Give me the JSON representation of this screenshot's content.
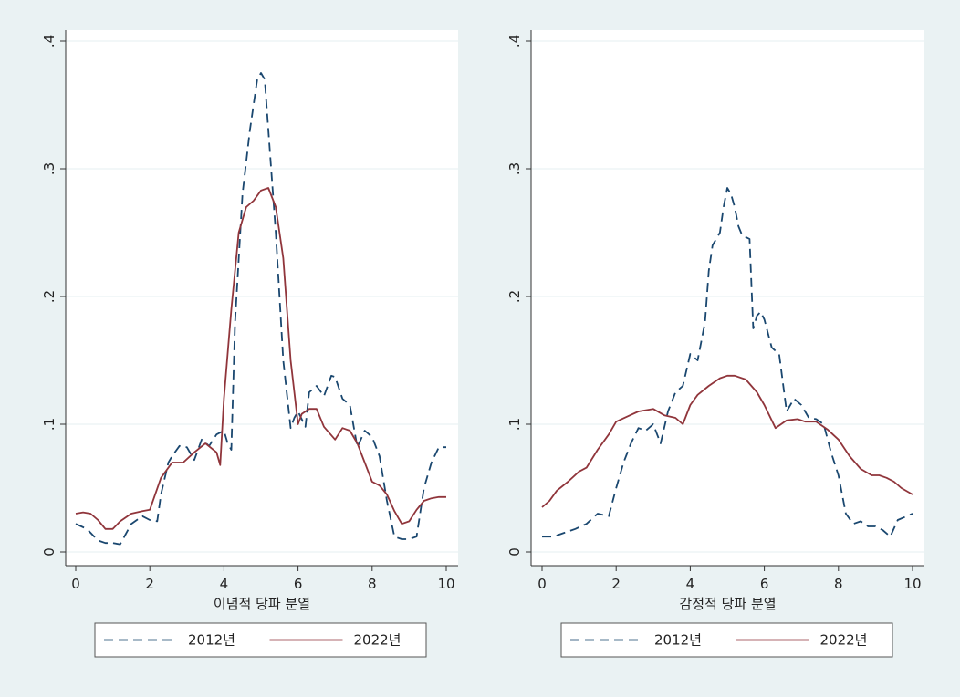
{
  "chart_data": [
    {
      "type": "line",
      "xlabel": "이념적 당파 분열",
      "ylabel": "",
      "xlim": [
        0,
        10
      ],
      "ylim": [
        0,
        0.4
      ],
      "xticks": [
        "0",
        "2",
        "4",
        "6",
        "8",
        "10"
      ],
      "yticks": [
        ".4",
        ".3",
        ".2",
        ".1",
        "0"
      ],
      "grid": true,
      "legend_position": "bottom",
      "series": [
        {
          "name": "2012년",
          "style": "dashed",
          "color": "#1a476f",
          "x": [
            0,
            0.3,
            0.6,
            0.8,
            1.0,
            1.2,
            1.5,
            1.8,
            2.0,
            2.2,
            2.3,
            2.5,
            2.6,
            2.8,
            3.0,
            3.2,
            3.4,
            3.6,
            3.8,
            4.0,
            4.1,
            4.2,
            4.3,
            4.5,
            4.7,
            4.9,
            5.0,
            5.1,
            5.2,
            5.4,
            5.6,
            5.8,
            5.9,
            6.0,
            6.2,
            6.3,
            6.5,
            6.7,
            6.9,
            7.0,
            7.2,
            7.4,
            7.6,
            7.8,
            8.0,
            8.2,
            8.4,
            8.6,
            8.8,
            9.0,
            9.2,
            9.4,
            9.6,
            9.8,
            10.0
          ],
          "y": [
            0.022,
            0.018,
            0.009,
            0.007,
            0.007,
            0.006,
            0.022,
            0.028,
            0.025,
            0.024,
            0.045,
            0.07,
            0.075,
            0.083,
            0.082,
            0.072,
            0.088,
            0.083,
            0.092,
            0.095,
            0.085,
            0.08,
            0.18,
            0.28,
            0.33,
            0.37,
            0.375,
            0.37,
            0.33,
            0.25,
            0.15,
            0.097,
            0.105,
            0.11,
            0.098,
            0.125,
            0.13,
            0.122,
            0.138,
            0.137,
            0.12,
            0.115,
            0.082,
            0.095,
            0.09,
            0.075,
            0.04,
            0.012,
            0.01,
            0.01,
            0.012,
            0.05,
            0.07,
            0.082,
            0.082
          ]
        },
        {
          "name": "2022년",
          "style": "solid",
          "color": "#90353b",
          "x": [
            0,
            0.2,
            0.4,
            0.6,
            0.8,
            1.0,
            1.2,
            1.5,
            1.8,
            2.0,
            2.3,
            2.6,
            2.9,
            3.2,
            3.5,
            3.8,
            3.9,
            4.0,
            4.2,
            4.4,
            4.6,
            4.8,
            5.0,
            5.2,
            5.4,
            5.6,
            5.8,
            6.0,
            6.1,
            6.3,
            6.5,
            6.7,
            7.0,
            7.2,
            7.4,
            7.6,
            7.8,
            8.0,
            8.2,
            8.4,
            8.6,
            8.8,
            9.0,
            9.2,
            9.4,
            9.6,
            9.8,
            10.0
          ],
          "y": [
            0.03,
            0.031,
            0.03,
            0.025,
            0.018,
            0.018,
            0.024,
            0.03,
            0.032,
            0.033,
            0.058,
            0.07,
            0.07,
            0.078,
            0.085,
            0.078,
            0.068,
            0.12,
            0.19,
            0.25,
            0.27,
            0.275,
            0.283,
            0.285,
            0.27,
            0.23,
            0.15,
            0.1,
            0.108,
            0.112,
            0.112,
            0.098,
            0.088,
            0.097,
            0.095,
            0.085,
            0.07,
            0.055,
            0.052,
            0.045,
            0.032,
            0.022,
            0.024,
            0.033,
            0.04,
            0.042,
            0.043,
            0.043
          ]
        }
      ]
    },
    {
      "type": "line",
      "xlabel": "감정적 당파 분열",
      "ylabel": "",
      "xlim": [
        0,
        10
      ],
      "ylim": [
        0,
        0.4
      ],
      "xticks": [
        "0",
        "2",
        "4",
        "6",
        "8",
        "10"
      ],
      "yticks": [
        ".4",
        ".3",
        ".2",
        ".1",
        "0"
      ],
      "grid": true,
      "legend_position": "bottom",
      "series": [
        {
          "name": "2012년",
          "style": "dashed",
          "color": "#1a476f",
          "x": [
            0,
            0.3,
            0.6,
            0.9,
            1.2,
            1.5,
            1.8,
            2.0,
            2.2,
            2.4,
            2.6,
            2.8,
            3.0,
            3.2,
            3.4,
            3.6,
            3.8,
            4.0,
            4.2,
            4.4,
            4.5,
            4.6,
            4.8,
            4.9,
            5.0,
            5.1,
            5.2,
            5.3,
            5.4,
            5.6,
            5.7,
            5.8,
            5.9,
            6.0,
            6.2,
            6.4,
            6.6,
            6.8,
            7.0,
            7.2,
            7.4,
            7.6,
            7.8,
            8.0,
            8.2,
            8.4,
            8.6,
            8.8,
            9.0,
            9.2,
            9.4,
            9.6,
            10.0
          ],
          "y": [
            0.012,
            0.012,
            0.015,
            0.018,
            0.022,
            0.03,
            0.028,
            0.05,
            0.07,
            0.085,
            0.097,
            0.095,
            0.1,
            0.085,
            0.11,
            0.125,
            0.13,
            0.155,
            0.15,
            0.18,
            0.22,
            0.24,
            0.25,
            0.27,
            0.285,
            0.28,
            0.27,
            0.255,
            0.248,
            0.245,
            0.175,
            0.185,
            0.188,
            0.182,
            0.16,
            0.155,
            0.11,
            0.12,
            0.115,
            0.105,
            0.104,
            0.1,
            0.078,
            0.06,
            0.03,
            0.022,
            0.024,
            0.02,
            0.02,
            0.017,
            0.012,
            0.025,
            0.03
          ]
        },
        {
          "name": "2022년",
          "style": "solid",
          "color": "#90353b",
          "x": [
            0,
            0.2,
            0.4,
            0.7,
            1.0,
            1.2,
            1.5,
            1.8,
            2.0,
            2.3,
            2.6,
            3.0,
            3.3,
            3.6,
            3.8,
            4.0,
            4.2,
            4.5,
            4.8,
            5.0,
            5.2,
            5.5,
            5.8,
            6.0,
            6.3,
            6.6,
            6.9,
            7.1,
            7.4,
            7.7,
            8.0,
            8.3,
            8.6,
            8.9,
            9.1,
            9.3,
            9.5,
            9.7,
            10.0
          ],
          "y": [
            0.035,
            0.04,
            0.048,
            0.055,
            0.063,
            0.066,
            0.08,
            0.092,
            0.102,
            0.106,
            0.11,
            0.112,
            0.107,
            0.105,
            0.1,
            0.115,
            0.123,
            0.13,
            0.136,
            0.138,
            0.138,
            0.135,
            0.125,
            0.115,
            0.097,
            0.103,
            0.104,
            0.102,
            0.102,
            0.096,
            0.088,
            0.075,
            0.065,
            0.06,
            0.06,
            0.058,
            0.055,
            0.05,
            0.045
          ]
        }
      ]
    }
  ],
  "legend": {
    "items": [
      {
        "label": "2012년",
        "style": "dashed",
        "color": "#1a476f"
      },
      {
        "label": "2022년",
        "style": "solid",
        "color": "#90353b"
      }
    ]
  }
}
